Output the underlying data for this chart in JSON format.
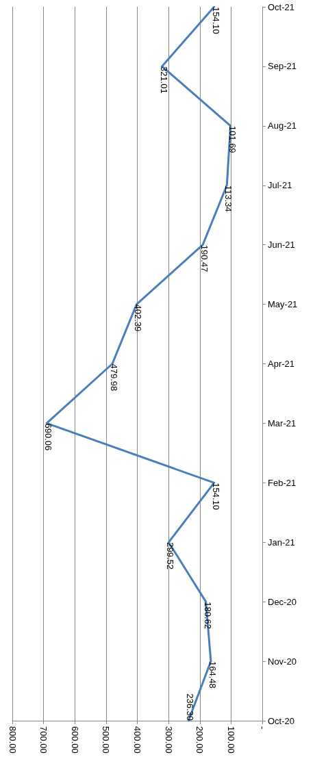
{
  "chart_data": {
    "type": "line",
    "orientation": "horizontal",
    "categories": [
      "Oct-21",
      "Sep-21",
      "Aug-21",
      "Jul-21",
      "Jun-21",
      "May-21",
      "Apr-21",
      "Mar-21",
      "Feb-21",
      "Jan-21",
      "Dec-20",
      "Nov-20",
      "Oct-20"
    ],
    "series": [
      {
        "color": "#4a7ebb",
        "values": [
          154.1,
          321.01,
          101.69,
          113.34,
          190.47,
          402.39,
          479.98,
          690.06,
          154.1,
          299.52,
          180.62,
          164.48,
          236.3
        ],
        "value_labels": [
          "154.10",
          "321.01",
          "101.69",
          "113.34",
          "190.47",
          "402.39",
          "479.98",
          "690.06",
          "154.10",
          "299.52",
          "180.62",
          "164.48",
          "236.30"
        ]
      }
    ],
    "xlim": [
      800,
      0
    ],
    "xticks": [
      {
        "value": 0,
        "label": "-"
      },
      {
        "value": 100,
        "label": "100.00"
      },
      {
        "value": 200,
        "label": "200.00"
      },
      {
        "value": 300,
        "label": "300.00"
      },
      {
        "value": 400,
        "label": "400.00"
      },
      {
        "value": 500,
        "label": "500.00"
      },
      {
        "value": 600,
        "label": "600.00"
      },
      {
        "value": 700,
        "label": "700.00"
      },
      {
        "value": 800,
        "label": "800.00"
      }
    ],
    "grid": "x",
    "marker": "none",
    "line_style": "solid"
  }
}
